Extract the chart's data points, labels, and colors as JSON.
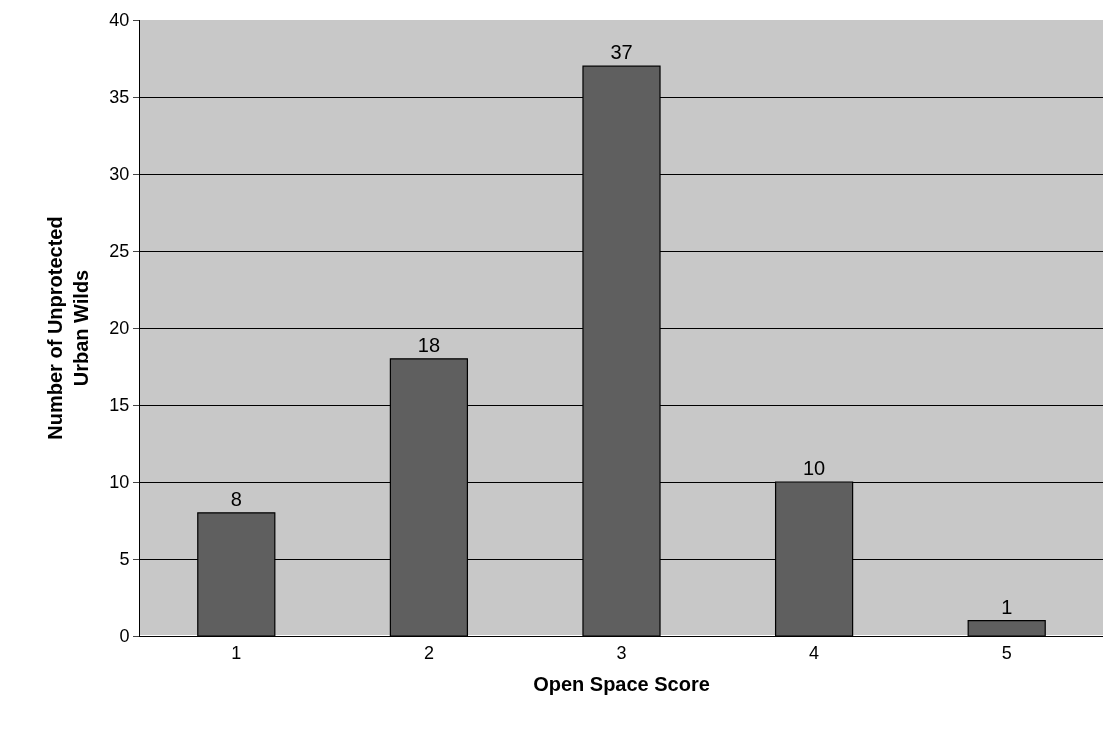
{
  "chart_data": {
    "type": "bar",
    "xlabel": "Open Space Score",
    "ylabel": "Number of Unprotected\nUrban Wilds",
    "categories": [
      "1",
      "2",
      "3",
      "4",
      "5"
    ],
    "values": [
      8,
      18,
      37,
      10,
      1
    ],
    "color": "#5f5f5f",
    "ylim": [
      0,
      40
    ],
    "yticks": [
      0,
      5,
      10,
      15,
      20,
      25,
      30,
      35,
      40
    ],
    "grid": "y",
    "data_labels": true
  }
}
